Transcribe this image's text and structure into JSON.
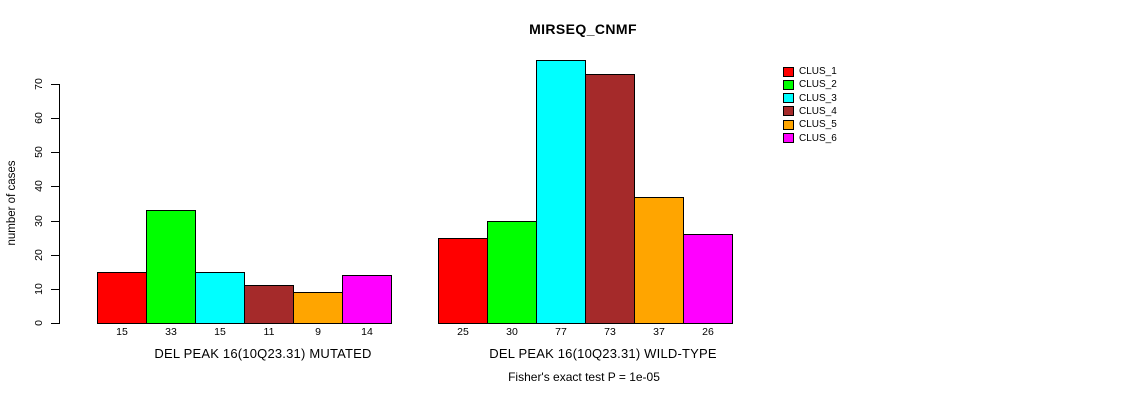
{
  "figure": {
    "title": "MIRSEQ_CNMF",
    "footnote": "Fisher's exact test P = 1e-05",
    "ylabel": "number of cases"
  },
  "chart_data": {
    "type": "bar",
    "title": "MIRSEQ_CNMF",
    "xlabel": "",
    "ylabel": "number of cases",
    "ylim": [
      0,
      77
    ],
    "yticks": [
      0,
      10,
      20,
      30,
      40,
      50,
      60,
      70
    ],
    "grid": false,
    "legend_position": "right",
    "categories": [
      "CLUS_1",
      "CLUS_2",
      "CLUS_3",
      "CLUS_4",
      "CLUS_5",
      "CLUS_6"
    ],
    "series_colors": [
      "#FF0000",
      "#00FF00",
      "#00FFFF",
      "#A52A2A",
      "#FFA500",
      "#FF00FF"
    ],
    "legend": [
      {
        "label": "CLUS_1",
        "color": "#FF0000"
      },
      {
        "label": "CLUS_2",
        "color": "#00FF00"
      },
      {
        "label": "CLUS_3",
        "color": "#00FFFF"
      },
      {
        "label": "CLUS_4",
        "color": "#A52A2A"
      },
      {
        "label": "CLUS_5",
        "color": "#FFA500"
      },
      {
        "label": "CLUS_6",
        "color": "#FF00FF"
      }
    ],
    "groups": [
      {
        "label": "DEL PEAK 16(10Q23.31) MUTATED",
        "values": [
          15,
          33,
          15,
          11,
          9,
          14
        ]
      },
      {
        "label": "DEL PEAK 16(10Q23.31) WILD-TYPE",
        "values": [
          25,
          30,
          77,
          73,
          37,
          26
        ]
      }
    ],
    "annotation": "Fisher's exact test P = 1e-05"
  }
}
